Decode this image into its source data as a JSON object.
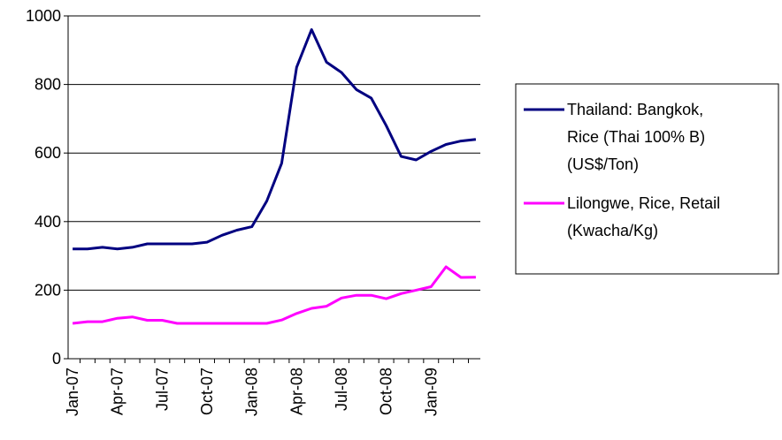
{
  "chart_data": {
    "type": "line",
    "title": "",
    "xlabel": "",
    "ylabel": "",
    "ylim": [
      0,
      1000
    ],
    "yticks": [
      "0",
      "200",
      "400",
      "600",
      "800",
      "1000"
    ],
    "grid": "horizontal",
    "legend_position": "right",
    "x": [
      "Jan-07",
      "Feb-07",
      "Mar-07",
      "Apr-07",
      "May-07",
      "Jun-07",
      "Jul-07",
      "Aug-07",
      "Sep-07",
      "Oct-07",
      "Nov-07",
      "Dec-07",
      "Jan-08",
      "Feb-08",
      "Mar-08",
      "Apr-08",
      "May-08",
      "Jun-08",
      "Jul-08",
      "Aug-08",
      "Sep-08",
      "Oct-08",
      "Nov-08",
      "Dec-08",
      "Jan-09",
      "Feb-09",
      "Mar-09",
      "Apr-09"
    ],
    "xtick_labels": [
      "Jan-07",
      "Apr-07",
      "Jul-07",
      "Oct-07",
      "Jan-08",
      "Apr-08",
      "Jul-08",
      "Oct-08",
      "Jan-09"
    ],
    "series": [
      {
        "legend_lines": [
          "Thailand: Bangkok,",
          "Rice (Thai 100% B)",
          "(US$/Ton)"
        ],
        "color": "#000080",
        "values": [
          320,
          320,
          325,
          320,
          325,
          335,
          335,
          335,
          335,
          340,
          360,
          375,
          385,
          460,
          570,
          850,
          960,
          865,
          835,
          785,
          760,
          680,
          590,
          580,
          605,
          625,
          635,
          640
        ]
      },
      {
        "legend_lines": [
          "Lilongwe, Rice, Retail",
          "(Kwacha/Kg)"
        ],
        "color": "#ff00ff",
        "values": [
          103,
          108,
          108,
          118,
          122,
          112,
          112,
          103,
          103,
          103,
          103,
          103,
          103,
          103,
          113,
          132,
          147,
          153,
          177,
          185,
          185,
          175,
          190,
          200,
          210,
          268,
          237,
          238
        ]
      }
    ]
  }
}
